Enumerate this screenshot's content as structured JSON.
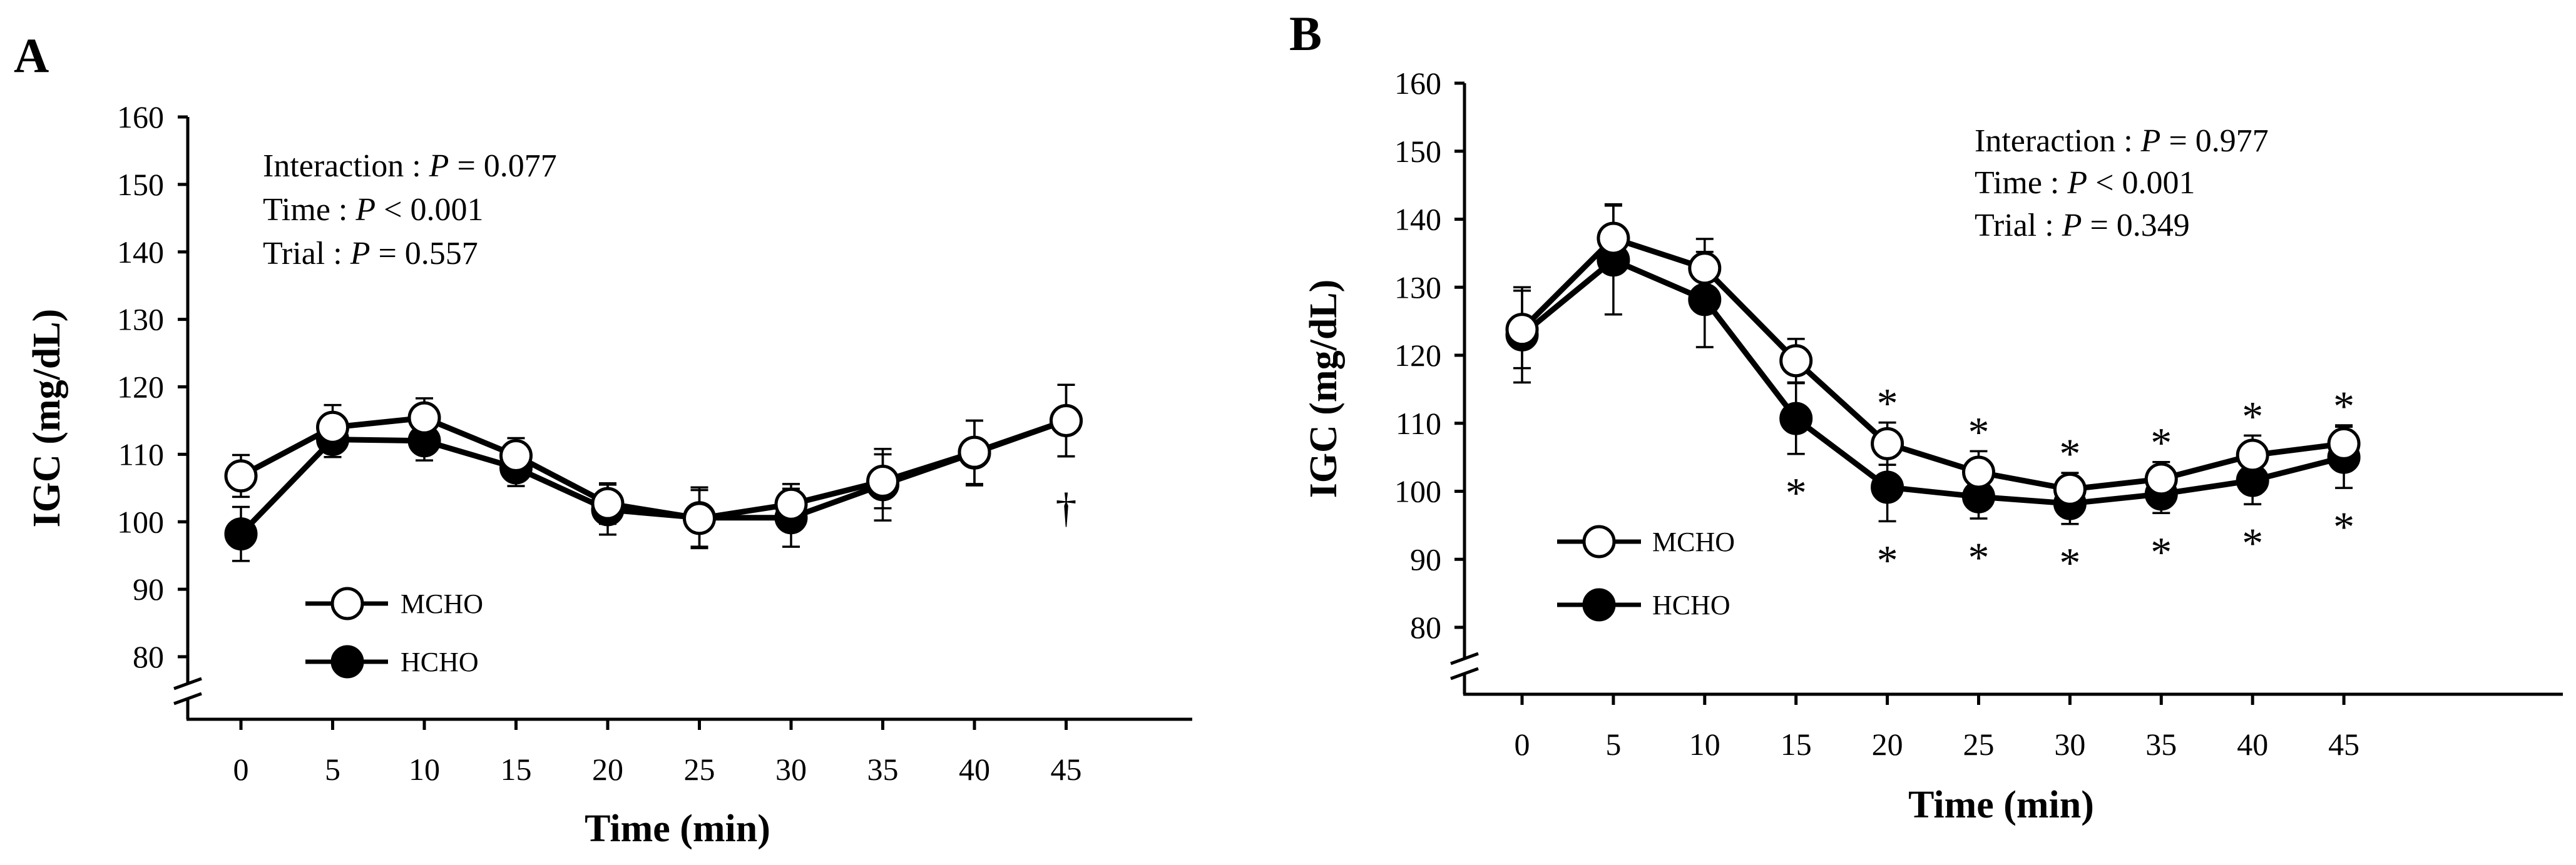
{
  "chart_data": [
    {
      "panel": "A",
      "type": "line",
      "x": [
        0,
        5,
        10,
        15,
        20,
        25,
        30,
        35,
        40,
        45
      ],
      "xlabel": "Time (min)",
      "ylabel": "IGC (mg/dL)",
      "ylim": [
        80,
        160
      ],
      "yticks": [
        80,
        90,
        100,
        110,
        120,
        130,
        140,
        150,
        160
      ],
      "axis_break": true,
      "stats": [
        {
          "label": "Interaction : ",
          "p": "P",
          "rest": " = 0.077"
        },
        {
          "label": "Time : ",
          "p": "P",
          "rest": " < 0.001"
        },
        {
          "label": "Trial : ",
          "p": "P",
          "rest": " = 0.557"
        }
      ],
      "series": [
        {
          "name": "MCHO",
          "marker": "open-circle",
          "values": [
            106.8,
            114.0,
            115.4,
            109.8,
            102.7,
            100.5,
            102.6,
            106.0,
            110.3,
            115.0
          ],
          "errors": [
            3.1,
            3.3,
            2.9,
            2.6,
            3.0,
            4.2,
            3.0,
            4.0,
            4.7,
            5.3
          ]
        },
        {
          "name": "HCHO",
          "marker": "filled-circle",
          "values": [
            98.2,
            112.2,
            112.0,
            108.0,
            101.8,
            100.6,
            100.6,
            105.5,
            110.2,
            115.0
          ],
          "errors": [
            4.0,
            2.6,
            2.9,
            2.7,
            3.7,
            4.5,
            4.3,
            5.3,
            4.8,
            5.3
          ]
        }
      ],
      "markers_above": [],
      "markers_below": [
        {
          "x": 45,
          "text": "†"
        }
      ],
      "legend": [
        "MCHO",
        "HCHO"
      ]
    },
    {
      "panel": "B",
      "type": "line",
      "x": [
        0,
        5,
        10,
        15,
        20,
        25,
        30,
        35,
        40,
        45
      ],
      "xlabel": "Time (min)",
      "ylabel": "IGC (mg/dL)",
      "ylim": [
        80,
        160
      ],
      "yticks": [
        80,
        90,
        100,
        110,
        120,
        130,
        140,
        150,
        160
      ],
      "axis_break": true,
      "stats": [
        {
          "label": "Interaction : ",
          "p": "P",
          "rest": " = 0.977"
        },
        {
          "label": "Time : ",
          "p": "P",
          "rest": " < 0.001"
        },
        {
          "label": "Trial : ",
          "p": "P",
          "rest": " = 0.349"
        }
      ],
      "series": [
        {
          "name": "MCHO",
          "marker": "open-circle",
          "values": [
            123.8,
            137.2,
            132.8,
            119.2,
            107.0,
            102.8,
            100.3,
            101.8,
            105.3,
            107.0
          ],
          "errors": [
            5.7,
            5.0,
            4.3,
            3.2,
            3.1,
            3.1,
            2.4,
            2.5,
            2.9,
            2.7
          ]
        },
        {
          "name": "HCHO",
          "marker": "filled-circle",
          "values": [
            123.0,
            134.0,
            128.2,
            110.7,
            100.6,
            99.2,
            98.2,
            99.6,
            101.6,
            105.0
          ],
          "errors": [
            7.0,
            8.0,
            7.0,
            5.2,
            5.0,
            3.2,
            3.0,
            2.8,
            3.5,
            4.5
          ]
        }
      ],
      "markers_above": [
        {
          "x": 20,
          "text": "*"
        },
        {
          "x": 25,
          "text": "*"
        },
        {
          "x": 30,
          "text": "*"
        },
        {
          "x": 35,
          "text": "*"
        },
        {
          "x": 40,
          "text": "*"
        },
        {
          "x": 45,
          "text": "*"
        }
      ],
      "markers_below": [
        {
          "x": 15,
          "text": "*"
        },
        {
          "x": 20,
          "text": "*"
        },
        {
          "x": 25,
          "text": "*"
        },
        {
          "x": 30,
          "text": "*"
        },
        {
          "x": 35,
          "text": "*"
        },
        {
          "x": 40,
          "text": "*"
        },
        {
          "x": 45,
          "text": "*"
        }
      ],
      "legend": [
        "MCHO",
        "HCHO"
      ]
    }
  ]
}
